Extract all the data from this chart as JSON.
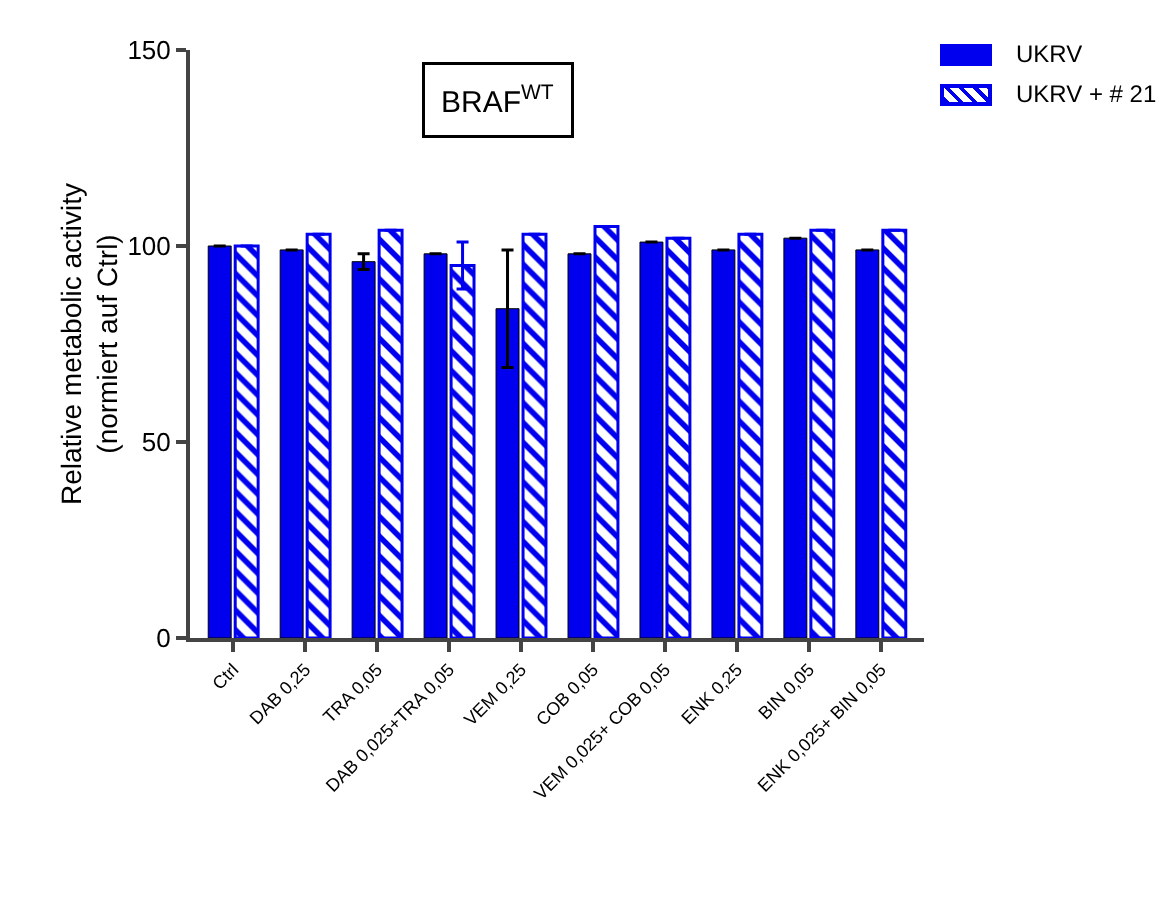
{
  "chart_data": {
    "type": "bar",
    "title": "BRAF$^{WT}$",
    "ylabel": "Relative metabolic activity\n(normiert auf Ctrl)",
    "categories": [
      "Ctrl",
      "DAB 0,25",
      "TRA 0,05",
      "DAB 0,025+TRA 0,05",
      "VEM 0,25",
      "COB 0,05",
      "VEM 0,025+ COB 0,05",
      "ENK 0,25",
      "BIN 0,05",
      "ENK 0,025+ BIN 0,05"
    ],
    "series": [
      {
        "name": "UKRV",
        "color": "#0000ee",
        "values": [
          100,
          99,
          96,
          98,
          84,
          98,
          101,
          99,
          102,
          99
        ],
        "errors": [
          null,
          null,
          2,
          null,
          15,
          null,
          null,
          null,
          null,
          null
        ]
      },
      {
        "name": "UKRV + # 21",
        "color": "#0000ee",
        "values": [
          100,
          103,
          104,
          95,
          103,
          105,
          102,
          103,
          104,
          104
        ],
        "errors": [
          null,
          null,
          null,
          6,
          null,
          null,
          null,
          null,
          null,
          null
        ]
      }
    ],
    "ylim": [
      0,
      150
    ],
    "yticks": [
      0,
      50,
      100,
      150
    ],
    "grid": false,
    "legend": "top right"
  }
}
